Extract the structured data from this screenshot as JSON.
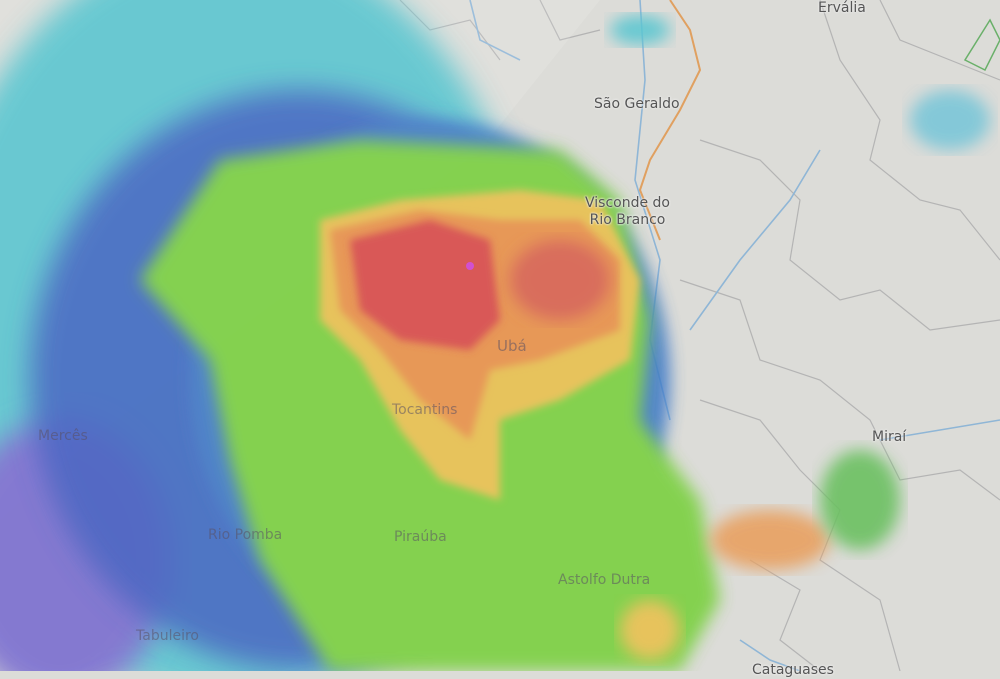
{
  "map": {
    "type": "weather-radar-overlay",
    "places": [
      {
        "name": "Ervália"
      },
      {
        "name": "São Geraldo"
      },
      {
        "name": "Visconde do\nRio Branco"
      },
      {
        "name": "Ubá"
      },
      {
        "name": "Tocantins"
      },
      {
        "name": "Mercês"
      },
      {
        "name": "Rio Pomba"
      },
      {
        "name": "Piraúba"
      },
      {
        "name": "Astolfo Dutra"
      },
      {
        "name": "Tabuleiro"
      },
      {
        "name": "Miraí"
      },
      {
        "name": "Cataguases"
      }
    ],
    "colors": {
      "land": "#dcdcd8",
      "borders": "#b0b0b0",
      "rivers": "#8fb6d6",
      "highway": "#e0a060",
      "radar_light": "#5cc6d0",
      "radar_blue": "#3a5ac0",
      "radar_green": "#7ad040",
      "radar_yellow": "#e8c050",
      "radar_orange": "#e89048",
      "radar_red": "#d84848"
    }
  }
}
